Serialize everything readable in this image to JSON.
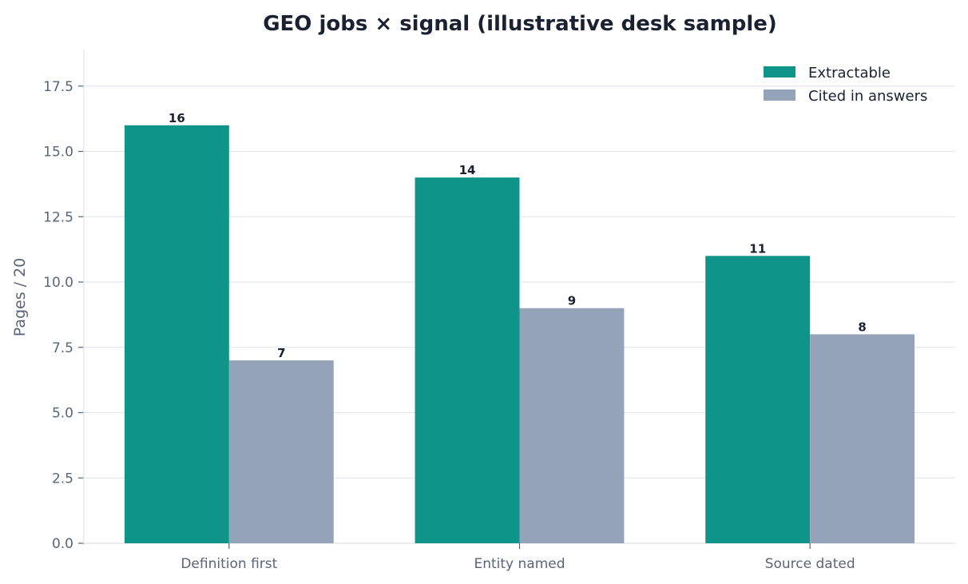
{
  "chart_data": {
    "type": "bar",
    "title": "GEO jobs × signal (illustrative desk sample)",
    "xlabel": "",
    "ylabel": "Pages / 20",
    "categories": [
      "Definition first",
      "Entity named",
      "Source dated"
    ],
    "series": [
      {
        "name": "Extractable",
        "values": [
          16,
          14,
          11
        ],
        "color": "#0e9488"
      },
      {
        "name": "Cited in answers",
        "values": [
          7,
          9,
          8
        ],
        "color": "#94a3b8"
      }
    ],
    "ylim": [
      0,
      18.9
    ],
    "yticks": [
      0.0,
      2.5,
      5.0,
      7.5,
      10.0,
      12.5,
      15.0,
      17.5
    ],
    "ytick_labels": [
      "0.0",
      "2.5",
      "5.0",
      "7.5",
      "10.0",
      "12.5",
      "15.0",
      "17.5"
    ],
    "grid": "horizontal",
    "legend_position": "top-right",
    "data_labels": true
  }
}
